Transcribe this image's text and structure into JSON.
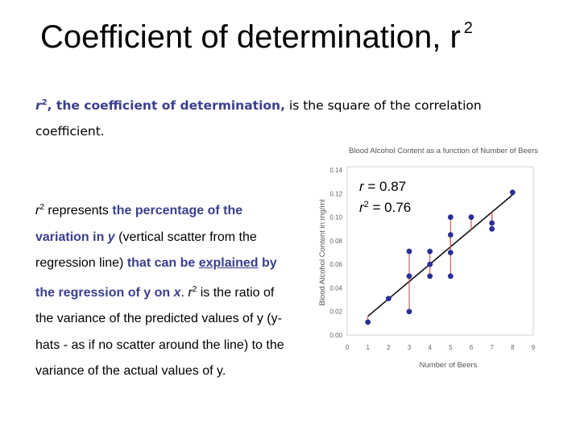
{
  "title": {
    "text": "Coefficient of determination, r",
    "sup": "2"
  },
  "definition": {
    "r": "r",
    "sup": "2",
    "highlight": ", the coefficient of determination,",
    "rest": " is the square of the correlation coefficient."
  },
  "body": {
    "r1": "r",
    "sup1": "2",
    "t1": " represents ",
    "t2": "the percentage of the variation in ",
    "t3": "y",
    "t4": " (vertical scatter from the regression line) ",
    "t5": "that can be ",
    "t6": "explained",
    "t7": " by the regression of y on ",
    "t8": "x",
    "t9": ".   ",
    "r2": "r",
    "sup2": "2",
    "t10": " is the ratio of the variance of the predicted values of y (y-hats - as if no scatter around the line) to the variance of the actual values of y."
  },
  "stats": {
    "r_label": "r",
    "r_value": " = 0.87",
    "r2_label": "r",
    "r2_sup": "2",
    "r2_value": " = 0.76"
  },
  "colors": {
    "points": "#2a2f96",
    "residuals": "#d05050",
    "highlight_text": "#3a3f8f"
  },
  "chart_data": {
    "type": "scatter",
    "title": "Blood Alcohol Content as a function of Number of Beers",
    "xlabel": "Number of Beers",
    "ylabel": "Blood Alcohol Content in mg/ml",
    "xlim": [
      0,
      9
    ],
    "ylim": [
      0,
      0.14
    ],
    "x_ticks": [
      "0",
      "1",
      "2",
      "3",
      "4",
      "5",
      "6",
      "7",
      "8",
      "9"
    ],
    "y_ticks": [
      "0.00",
      "0.02",
      "0.04",
      "0.06",
      "0.08",
      "0.10",
      "0.12",
      "0.14"
    ],
    "points": [
      {
        "x": 1,
        "y": 0.011
      },
      {
        "x": 2,
        "y": 0.031
      },
      {
        "x": 3,
        "y": 0.071
      },
      {
        "x": 3,
        "y": 0.05
      },
      {
        "x": 3,
        "y": 0.02
      },
      {
        "x": 4,
        "y": 0.071
      },
      {
        "x": 4,
        "y": 0.06
      },
      {
        "x": 4,
        "y": 0.05
      },
      {
        "x": 5,
        "y": 0.1
      },
      {
        "x": 5,
        "y": 0.085
      },
      {
        "x": 5,
        "y": 0.07
      },
      {
        "x": 5,
        "y": 0.05
      },
      {
        "x": 6,
        "y": 0.1
      },
      {
        "x": 7,
        "y": 0.095
      },
      {
        "x": 7,
        "y": 0.09
      },
      {
        "x": 8,
        "y": 0.121
      }
    ],
    "regression": {
      "x": [
        1,
        8
      ],
      "y": [
        0.016,
        0.119
      ]
    },
    "grid": false
  }
}
